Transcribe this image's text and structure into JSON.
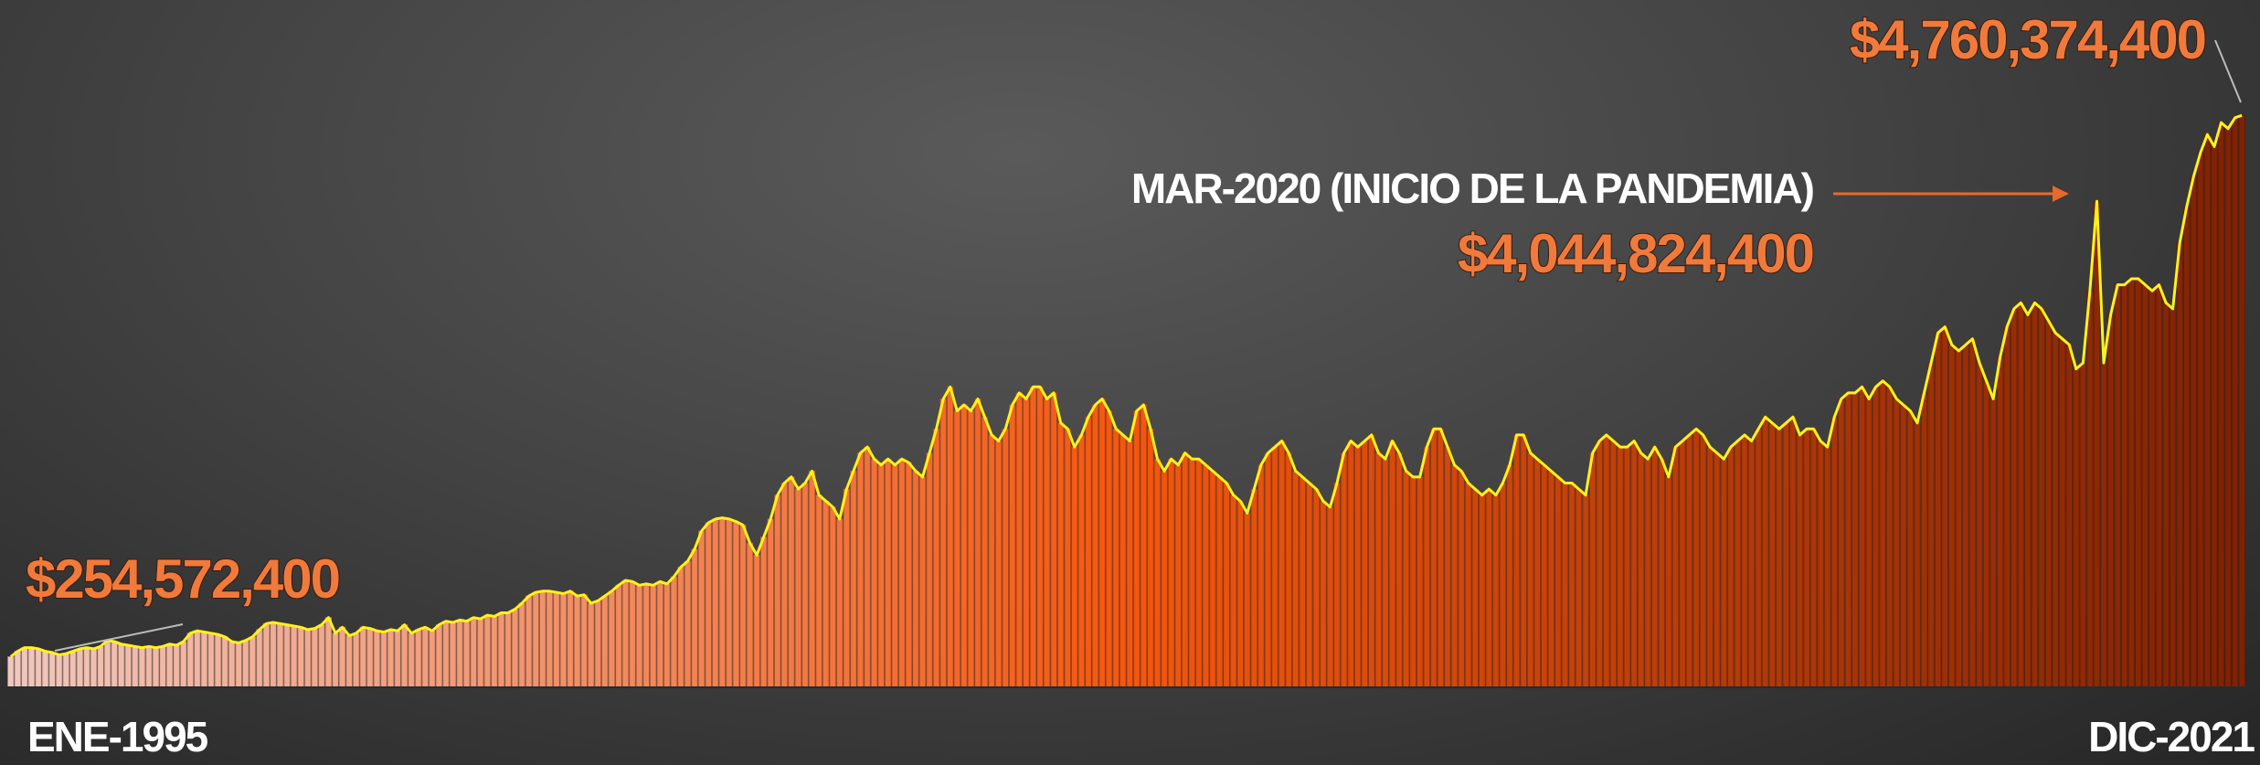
{
  "chart_data": {
    "type": "bar",
    "line_overlay": true,
    "line_color": "#fff21a",
    "color_stops": [
      "#f0c8be",
      "#f4570f",
      "#7e2204"
    ],
    "ylim": [
      0,
      5720000000
    ],
    "x_labels": [
      {
        "index": 0,
        "label": "ENE-1995"
      },
      {
        "index": 323,
        "label": "DIC-2021"
      }
    ],
    "annotations": [
      {
        "index": 0,
        "label": "$254,572,400"
      },
      {
        "index": 302,
        "text": "MAR-2020 (INICIO DE LA PANDEMIA)",
        "label": "$4,044,824,400"
      },
      {
        "index": 323,
        "label": "$4,760,374,400"
      }
    ],
    "values": [
      254572400,
      300000000,
      330000000,
      330000000,
      320000000,
      300000000,
      290000000,
      270000000,
      280000000,
      300000000,
      320000000,
      330000000,
      320000000,
      340000000,
      390000000,
      380000000,
      360000000,
      350000000,
      340000000,
      330000000,
      340000000,
      330000000,
      340000000,
      360000000,
      350000000,
      380000000,
      450000000,
      470000000,
      460000000,
      450000000,
      440000000,
      420000000,
      380000000,
      370000000,
      390000000,
      420000000,
      480000000,
      530000000,
      540000000,
      530000000,
      520000000,
      510000000,
      500000000,
      480000000,
      490000000,
      520000000,
      580000000,
      450000000,
      500000000,
      430000000,
      450000000,
      500000000,
      490000000,
      470000000,
      460000000,
      480000000,
      470000000,
      520000000,
      450000000,
      480000000,
      500000000,
      470000000,
      520000000,
      550000000,
      540000000,
      560000000,
      550000000,
      580000000,
      570000000,
      600000000,
      590000000,
      620000000,
      620000000,
      650000000,
      700000000,
      760000000,
      790000000,
      800000000,
      800000000,
      790000000,
      780000000,
      800000000,
      760000000,
      770000000,
      700000000,
      720000000,
      760000000,
      800000000,
      850000000,
      890000000,
      880000000,
      850000000,
      860000000,
      850000000,
      880000000,
      860000000,
      920000000,
      1000000000,
      1050000000,
      1150000000,
      1300000000,
      1370000000,
      1400000000,
      1410000000,
      1400000000,
      1380000000,
      1350000000,
      1200000000,
      1100000000,
      1250000000,
      1400000000,
      1600000000,
      1700000000,
      1750000000,
      1650000000,
      1700000000,
      1800000000,
      1600000000,
      1550000000,
      1500000000,
      1400000000,
      1650000000,
      1800000000,
      1950000000,
      2000000000,
      1900000000,
      1850000000,
      1900000000,
      1850000000,
      1900000000,
      1870000000,
      1800000000,
      1750000000,
      1950000000,
      2150000000,
      2400000000,
      2500000000,
      2300000000,
      2350000000,
      2300000000,
      2400000000,
      2250000000,
      2100000000,
      2050000000,
      2150000000,
      2350000000,
      2450000000,
      2400000000,
      2500000000,
      2500000000,
      2400000000,
      2450000000,
      2200000000,
      2150000000,
      2000000000,
      2100000000,
      2250000000,
      2350000000,
      2400000000,
      2300000000,
      2150000000,
      2100000000,
      2050000000,
      2300000000,
      2350000000,
      2150000000,
      1900000000,
      1800000000,
      1900000000,
      1850000000,
      1950000000,
      1900000000,
      1900000000,
      1850000000,
      1800000000,
      1750000000,
      1700000000,
      1600000000,
      1550000000,
      1450000000,
      1650000000,
      1850000000,
      1950000000,
      2000000000,
      2050000000,
      1950000000,
      1800000000,
      1750000000,
      1700000000,
      1650000000,
      1550000000,
      1500000000,
      1700000000,
      1950000000,
      2050000000,
      2000000000,
      2050000000,
      2100000000,
      1950000000,
      1900000000,
      2050000000,
      1950000000,
      1800000000,
      1750000000,
      1750000000,
      2000000000,
      2150000000,
      2150000000,
      2000000000,
      1850000000,
      1800000000,
      1700000000,
      1650000000,
      1600000000,
      1650000000,
      1600000000,
      1700000000,
      1850000000,
      2100000000,
      2100000000,
      1950000000,
      1900000000,
      1850000000,
      1800000000,
      1750000000,
      1700000000,
      1700000000,
      1650000000,
      1600000000,
      1950000000,
      2050000000,
      2100000000,
      2050000000,
      2000000000,
      2000000000,
      2050000000,
      1950000000,
      1900000000,
      2000000000,
      1900000000,
      1750000000,
      2000000000,
      2050000000,
      2100000000,
      2150000000,
      2100000000,
      2000000000,
      1950000000,
      1900000000,
      2000000000,
      2050000000,
      2100000000,
      2050000000,
      2150000000,
      2250000000,
      2200000000,
      2150000000,
      2200000000,
      2250000000,
      2100000000,
      2150000000,
      2150000000,
      2050000000,
      2000000000,
      2250000000,
      2400000000,
      2450000000,
      2450000000,
      2500000000,
      2400000000,
      2500000000,
      2550000000,
      2500000000,
      2400000000,
      2350000000,
      2300000000,
      2200000000,
      2450000000,
      2700000000,
      2950000000,
      3000000000,
      2850000000,
      2800000000,
      2850000000,
      2900000000,
      2700000000,
      2550000000,
      2400000000,
      2750000000,
      3000000000,
      3150000000,
      3200000000,
      3100000000,
      3200000000,
      3150000000,
      3050000000,
      2950000000,
      2900000000,
      2850000000,
      2650000000,
      2700000000,
      3300000000,
      4044824400,
      2700000000,
      3100000000,
      3350000000,
      3350000000,
      3400000000,
      3400000000,
      3350000000,
      3300000000,
      3350000000,
      3200000000,
      3150000000,
      3700000000,
      4000000000,
      4250000000,
      4450000000,
      4600000000,
      4500000000,
      4700000000,
      4650000000,
      4740000000,
      4760374400
    ]
  }
}
